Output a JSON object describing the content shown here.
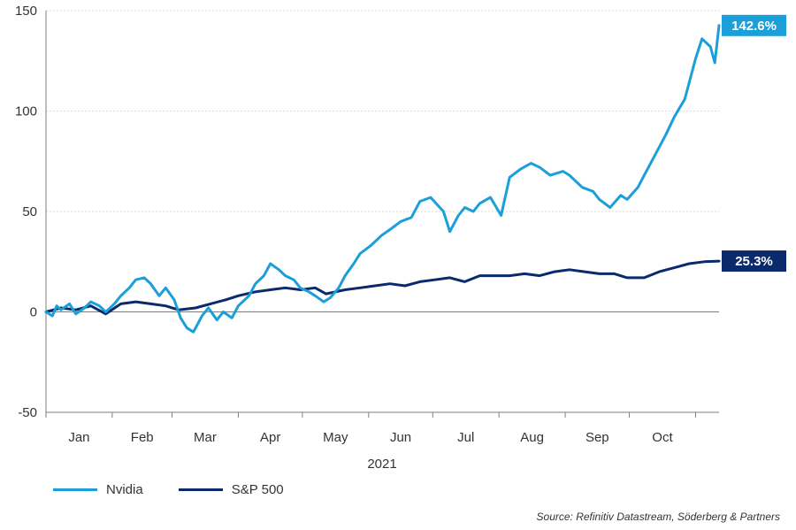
{
  "colors": {
    "nvidia": "#1b9fd9",
    "sp500": "#0b2a6b",
    "axis": "#7f7f7f",
    "grid": "#d9d9d9"
  },
  "legend": {
    "nvidia": "Nvidia",
    "sp500": "S&P 500"
  },
  "source": "Source: Refinitiv Datastream, Söderberg & Partners",
  "chart_data": {
    "type": "line",
    "xlabel": "2021",
    "ylabel": "",
    "ylim": [
      -50,
      150
    ],
    "yticks": [
      -50,
      0,
      50,
      100,
      150
    ],
    "grid": true,
    "legend_position": "bottom-left",
    "x_domain": [
      "2021-01-01",
      "2021-11-12"
    ],
    "month_ticks": [
      "Jan",
      "Feb",
      "Mar",
      "Apr",
      "May",
      "Jun",
      "Jul",
      "Aug",
      "Sep",
      "Oct"
    ],
    "end_labels": {
      "nvidia": "142.6%",
      "sp500": "25.3%"
    },
    "series": [
      {
        "name": "Nvidia",
        "x": [
          "2021-01-01",
          "2021-01-04",
          "2021-01-06",
          "2021-01-08",
          "2021-01-12",
          "2021-01-15",
          "2021-01-19",
          "2021-01-22",
          "2021-01-26",
          "2021-01-29",
          "2021-02-02",
          "2021-02-05",
          "2021-02-09",
          "2021-02-12",
          "2021-02-16",
          "2021-02-19",
          "2021-02-23",
          "2021-02-26",
          "2021-03-02",
          "2021-03-05",
          "2021-03-08",
          "2021-03-11",
          "2021-03-15",
          "2021-03-18",
          "2021-03-22",
          "2021-03-25",
          "2021-03-29",
          "2021-04-01",
          "2021-04-06",
          "2021-04-09",
          "2021-04-13",
          "2021-04-16",
          "2021-04-20",
          "2021-04-23",
          "2021-04-27",
          "2021-04-30",
          "2021-05-04",
          "2021-05-07",
          "2021-05-11",
          "2021-05-14",
          "2021-05-18",
          "2021-05-21",
          "2021-05-25",
          "2021-05-28",
          "2021-06-02",
          "2021-06-07",
          "2021-06-11",
          "2021-06-16",
          "2021-06-21",
          "2021-06-25",
          "2021-06-30",
          "2021-07-06",
          "2021-07-09",
          "2021-07-13",
          "2021-07-16",
          "2021-07-20",
          "2021-07-23",
          "2021-07-28",
          "2021-08-02",
          "2021-08-06",
          "2021-08-11",
          "2021-08-16",
          "2021-08-20",
          "2021-08-25",
          "2021-08-31",
          "2021-09-03",
          "2021-09-09",
          "2021-09-14",
          "2021-09-17",
          "2021-09-22",
          "2021-09-27",
          "2021-09-30",
          "2021-10-05",
          "2021-10-08",
          "2021-10-13",
          "2021-10-18",
          "2021-10-22",
          "2021-10-27",
          "2021-11-01",
          "2021-11-04",
          "2021-11-08",
          "2021-11-10",
          "2021-11-12"
        ],
        "values": [
          0,
          -2,
          3,
          1,
          4,
          -1,
          2,
          5,
          3,
          0,
          4,
          8,
          12,
          16,
          17,
          14,
          8,
          12,
          6,
          -3,
          -8,
          -10,
          -2,
          2,
          -4,
          0,
          -3,
          3,
          8,
          14,
          18,
          24,
          21,
          18,
          16,
          12,
          10,
          8,
          5,
          7,
          12,
          18,
          24,
          29,
          33,
          38,
          41,
          45,
          47,
          55,
          57,
          50,
          40,
          48,
          52,
          50,
          54,
          57,
          48,
          67,
          71,
          74,
          72,
          68,
          70,
          68,
          62,
          60,
          56,
          52,
          58,
          56,
          62,
          68,
          78,
          88,
          97,
          106,
          126,
          136,
          132,
          124,
          142.6
        ]
      },
      {
        "name": "S&P 500",
        "x": [
          "2021-01-01",
          "2021-01-08",
          "2021-01-15",
          "2021-01-22",
          "2021-01-29",
          "2021-02-05",
          "2021-02-12",
          "2021-02-19",
          "2021-02-26",
          "2021-03-04",
          "2021-03-12",
          "2021-03-19",
          "2021-03-26",
          "2021-04-01",
          "2021-04-09",
          "2021-04-16",
          "2021-04-23",
          "2021-04-30",
          "2021-05-07",
          "2021-05-12",
          "2021-05-21",
          "2021-05-28",
          "2021-06-04",
          "2021-06-11",
          "2021-06-18",
          "2021-06-25",
          "2021-07-02",
          "2021-07-09",
          "2021-07-16",
          "2021-07-23",
          "2021-07-30",
          "2021-08-06",
          "2021-08-13",
          "2021-08-20",
          "2021-08-27",
          "2021-09-03",
          "2021-09-10",
          "2021-09-17",
          "2021-09-24",
          "2021-09-30",
          "2021-10-08",
          "2021-10-15",
          "2021-10-22",
          "2021-10-29",
          "2021-11-05",
          "2021-11-12"
        ],
        "values": [
          0,
          2,
          1,
          3,
          -1,
          4,
          5,
          4,
          3,
          1,
          2,
          4,
          6,
          8,
          10,
          11,
          12,
          11,
          12,
          9,
          11,
          12,
          13,
          14,
          13,
          15,
          16,
          17,
          15,
          18,
          18,
          18,
          19,
          18,
          20,
          21,
          20,
          19,
          19,
          17,
          17,
          20,
          22,
          24,
          25,
          25.3
        ]
      }
    ]
  }
}
